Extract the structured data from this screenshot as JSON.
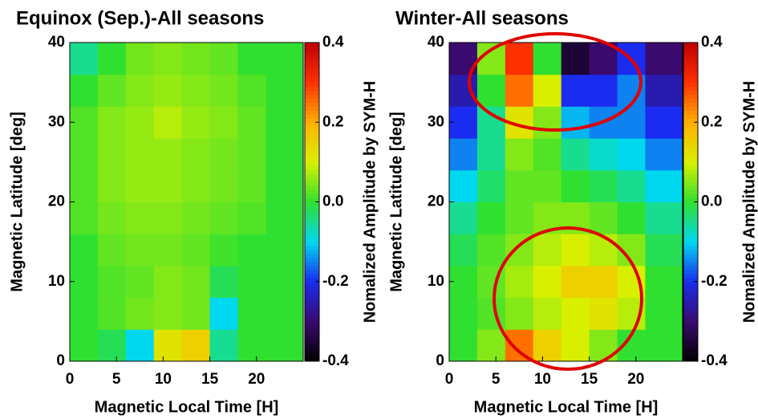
{
  "chart_data": [
    {
      "type": "heatmap",
      "title": "Equinox (Sep.)-All seasons",
      "x_label": "Magnetic Local Time [H]",
      "y_label": "Magnetic Latitude [deg]",
      "colorbar_label": "Nomalized Amplitude by SYM-H",
      "xlim": [
        0,
        25
      ],
      "xticks": [
        0,
        5,
        10,
        15,
        20
      ],
      "ylim": [
        0,
        40
      ],
      "yticks": [
        0,
        10,
        20,
        30,
        40
      ],
      "clim": [
        -0.4,
        0.4
      ],
      "cticks": [
        -0.4,
        -0.2,
        {
          "value": 0,
          "label": "0.0"
        },
        0.2,
        0.4
      ],
      "colormap": [
        "#000000",
        "#3a0a6e",
        "#1a2cf0",
        "#00d8f0",
        "#30e030",
        "#d8f000",
        "#ffb000",
        "#ff3000",
        "#c00000"
      ],
      "x_edges": [
        0,
        3,
        6,
        9,
        12,
        15,
        18,
        21,
        25
      ],
      "y_edges": [
        0,
        4,
        8,
        12,
        16,
        20,
        24,
        28,
        32,
        36,
        40
      ],
      "z": [
        [
          0.0,
          -0.02,
          -0.1,
          0.12,
          0.15,
          -0.05,
          0.0,
          0.0
        ],
        [
          0.0,
          0.02,
          0.04,
          0.05,
          0.04,
          -0.1,
          0.0,
          0.0
        ],
        [
          0.0,
          0.02,
          0.03,
          0.05,
          0.04,
          -0.02,
          0.0,
          0.0
        ],
        [
          0.0,
          0.03,
          0.04,
          0.04,
          0.03,
          0.01,
          0.0,
          0.0
        ],
        [
          0.02,
          0.04,
          0.05,
          0.05,
          0.04,
          0.03,
          0.02,
          0.0
        ],
        [
          0.02,
          0.05,
          0.06,
          0.06,
          0.05,
          0.04,
          0.03,
          0.0
        ],
        [
          0.02,
          0.05,
          0.06,
          0.06,
          0.05,
          0.04,
          0.03,
          0.0
        ],
        [
          0.02,
          0.05,
          0.06,
          0.08,
          0.06,
          0.05,
          0.03,
          0.0
        ],
        [
          0.0,
          0.03,
          0.05,
          0.06,
          0.05,
          0.04,
          0.02,
          0.0
        ],
        [
          -0.05,
          0.0,
          0.04,
          0.05,
          0.04,
          0.03,
          0.0,
          0.0
        ]
      ]
    },
    {
      "type": "heatmap",
      "title": "Winter-All seasons",
      "x_label": "Magnetic Local Time [H]",
      "y_label": "Magnetic Latitude [deg]",
      "colorbar_label": "Nomalized Amplitude by SYM-H",
      "xlim": [
        0,
        25
      ],
      "xticks": [
        0,
        5,
        10,
        15,
        20
      ],
      "ylim": [
        0,
        40
      ],
      "yticks": [
        0,
        10,
        20,
        30,
        40
      ],
      "clim": [
        -0.4,
        0.4
      ],
      "cticks": [
        -0.4,
        -0.2,
        {
          "value": 0,
          "label": "0.0"
        },
        0.2,
        0.4
      ],
      "colormap": [
        "#000000",
        "#3a0a6e",
        "#1a2cf0",
        "#00d8f0",
        "#30e030",
        "#d8f000",
        "#ffb000",
        "#ff3000",
        "#c00000"
      ],
      "x_edges": [
        0,
        3,
        6,
        9,
        12,
        15,
        18,
        21,
        25
      ],
      "y_edges": [
        0,
        4,
        8,
        12,
        16,
        20,
        24,
        28,
        32,
        36,
        40
      ],
      "z": [
        [
          0.0,
          0.05,
          0.25,
          0.15,
          0.1,
          0.05,
          0.0,
          0.0
        ],
        [
          0.0,
          0.02,
          0.05,
          0.08,
          0.1,
          0.12,
          0.08,
          0.0
        ],
        [
          0.0,
          0.03,
          0.07,
          0.1,
          0.15,
          0.15,
          0.1,
          0.0
        ],
        [
          -0.02,
          0.02,
          0.05,
          0.08,
          0.1,
          0.08,
          0.05,
          -0.02
        ],
        [
          -0.05,
          0.0,
          0.03,
          0.05,
          0.05,
          0.03,
          0.0,
          -0.05
        ],
        [
          -0.1,
          -0.03,
          0.03,
          0.03,
          0.0,
          -0.02,
          -0.05,
          -0.1
        ],
        [
          -0.15,
          -0.05,
          0.05,
          0.02,
          -0.05,
          -0.08,
          -0.1,
          -0.15
        ],
        [
          -0.2,
          -0.05,
          0.12,
          0.05,
          -0.12,
          -0.15,
          -0.15,
          -0.2
        ],
        [
          -0.25,
          0.0,
          0.25,
          0.1,
          -0.2,
          -0.2,
          -0.15,
          -0.25
        ],
        [
          -0.3,
          0.05,
          0.3,
          0.0,
          -0.35,
          -0.3,
          -0.2,
          -0.3
        ]
      ]
    }
  ]
}
